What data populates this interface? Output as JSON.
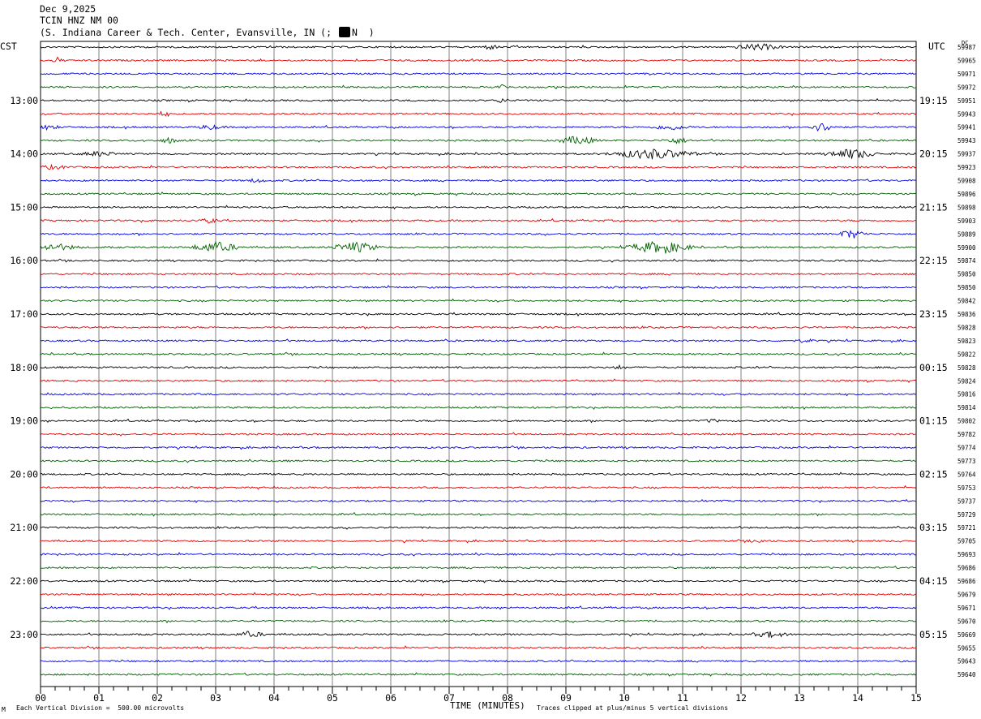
{
  "header": {
    "date": "Dec 9,2025",
    "station": "TCIN HNZ NM 00",
    "location_prefix": "(S. Indiana Career & Tech. Center, Evansville, IN (;",
    "location_suffix": "N  )"
  },
  "left_timezone": "CST",
  "right_timezone": "UTC",
  "dc_header": "DC",
  "footer": {
    "scale_text": "Each Vertical Division =  500.00 microvolts",
    "xlabel": "TIME (MINUTES)",
    "clip_text": "Traces clipped at plus/minus 5 vertical divisions",
    "corner_mark": "M"
  },
  "colors": {
    "trace_cycle": [
      "#000000",
      "#e00000",
      "#0000e0",
      "#006000"
    ],
    "grid": "#808080"
  },
  "chart_data": {
    "type": "line",
    "title": "TCIN HNZ NM 00",
    "xlabel": "TIME (MINUTES)",
    "xlim": [
      0,
      15
    ],
    "x_ticks": [
      "00",
      "01",
      "02",
      "03",
      "04",
      "05",
      "06",
      "07",
      "08",
      "09",
      "10",
      "11",
      "12",
      "13",
      "14",
      "15"
    ],
    "grid": true,
    "left_time_labels": [
      {
        "row": 4,
        "label": "13:00"
      },
      {
        "row": 8,
        "label": "14:00"
      },
      {
        "row": 12,
        "label": "15:00"
      },
      {
        "row": 16,
        "label": "16:00"
      },
      {
        "row": 20,
        "label": "17:00"
      },
      {
        "row": 24,
        "label": "18:00"
      },
      {
        "row": 28,
        "label": "19:00"
      },
      {
        "row": 32,
        "label": "20:00"
      },
      {
        "row": 36,
        "label": "21:00"
      },
      {
        "row": 40,
        "label": "22:00"
      },
      {
        "row": 44,
        "label": "23:00"
      }
    ],
    "right_time_labels": [
      {
        "row": 4,
        "label": "19:15"
      },
      {
        "row": 8,
        "label": "20:15"
      },
      {
        "row": 12,
        "label": "21:15"
      },
      {
        "row": 16,
        "label": "22:15"
      },
      {
        "row": 20,
        "label": "23:15"
      },
      {
        "row": 24,
        "label": "00:15"
      },
      {
        "row": 28,
        "label": "01:15"
      },
      {
        "row": 32,
        "label": "02:15"
      },
      {
        "row": 36,
        "label": "03:15"
      },
      {
        "row": 40,
        "label": "04:15"
      },
      {
        "row": 44,
        "label": "05:15"
      }
    ],
    "dc_offsets": [
      59987,
      59965,
      59971,
      59972,
      59951,
      59943,
      59941,
      59943,
      59937,
      59923,
      59908,
      59896,
      59898,
      59903,
      59889,
      59900,
      59874,
      59850,
      59850,
      59842,
      59836,
      59828,
      59823,
      59822,
      59828,
      59824,
      59816,
      59814,
      59802,
      59782,
      59774,
      59773,
      59764,
      59753,
      59737,
      59729,
      59721,
      59705,
      59693,
      59686,
      59686,
      59679,
      59671,
      59670,
      59669,
      59655,
      59643,
      59640
    ],
    "events": [
      {
        "row": 0,
        "minute": 12.3,
        "amplitude": 3.5,
        "duration": 0.5
      },
      {
        "row": 0,
        "minute": 7.7,
        "amplitude": 2.5,
        "duration": 0.2
      },
      {
        "row": 1,
        "minute": 0.3,
        "amplitude": 2,
        "duration": 0.15
      },
      {
        "row": 3,
        "minute": 7.9,
        "amplitude": 2.5,
        "duration": 0.2
      },
      {
        "row": 4,
        "minute": 7.9,
        "amplitude": 2.5,
        "duration": 0.15
      },
      {
        "row": 5,
        "minute": 2.1,
        "amplitude": 2.5,
        "duration": 0.15
      },
      {
        "row": 6,
        "minute": 0.1,
        "amplitude": 2.5,
        "duration": 0.3
      },
      {
        "row": 6,
        "minute": 2.9,
        "amplitude": 2.5,
        "duration": 0.3
      },
      {
        "row": 6,
        "minute": 10.8,
        "amplitude": 3,
        "duration": 0.4
      },
      {
        "row": 6,
        "minute": 13.4,
        "amplitude": 5,
        "duration": 0.3
      },
      {
        "row": 7,
        "minute": 2.2,
        "amplitude": 3,
        "duration": 0.2
      },
      {
        "row": 7,
        "minute": 9.2,
        "amplitude": 5,
        "duration": 0.4
      },
      {
        "row": 7,
        "minute": 10.9,
        "amplitude": 3,
        "duration": 0.3
      },
      {
        "row": 8,
        "minute": 1.0,
        "amplitude": 2.5,
        "duration": 0.4
      },
      {
        "row": 8,
        "minute": 10.5,
        "amplitude": 6,
        "duration": 0.9
      },
      {
        "row": 8,
        "minute": 13.9,
        "amplitude": 6,
        "duration": 0.5
      },
      {
        "row": 9,
        "minute": 0.2,
        "amplitude": 2,
        "duration": 0.4
      },
      {
        "row": 10,
        "minute": 3.7,
        "amplitude": 2,
        "duration": 0.2
      },
      {
        "row": 13,
        "minute": 2.9,
        "amplitude": 2.5,
        "duration": 0.2
      },
      {
        "row": 14,
        "minute": 13.9,
        "amplitude": 5,
        "duration": 0.3
      },
      {
        "row": 15,
        "minute": 0.2,
        "amplitude": 3.5,
        "duration": 0.6
      },
      {
        "row": 15,
        "minute": 3.0,
        "amplitude": 6,
        "duration": 0.5
      },
      {
        "row": 15,
        "minute": 5.4,
        "amplitude": 6,
        "duration": 0.5
      },
      {
        "row": 15,
        "minute": 10.6,
        "amplitude": 7,
        "duration": 0.7
      },
      {
        "row": 22,
        "minute": 13.1,
        "amplitude": 2,
        "duration": 0.2
      },
      {
        "row": 24,
        "minute": 9.9,
        "amplitude": 2,
        "duration": 0.15
      },
      {
        "row": 28,
        "minute": 11.5,
        "amplitude": 2,
        "duration": 0.15
      },
      {
        "row": 37,
        "minute": 12.3,
        "amplitude": 2,
        "duration": 0.2
      },
      {
        "row": 44,
        "minute": 3.6,
        "amplitude": 3,
        "duration": 0.3
      },
      {
        "row": 44,
        "minute": 12.5,
        "amplitude": 3,
        "duration": 0.4
      }
    ]
  }
}
